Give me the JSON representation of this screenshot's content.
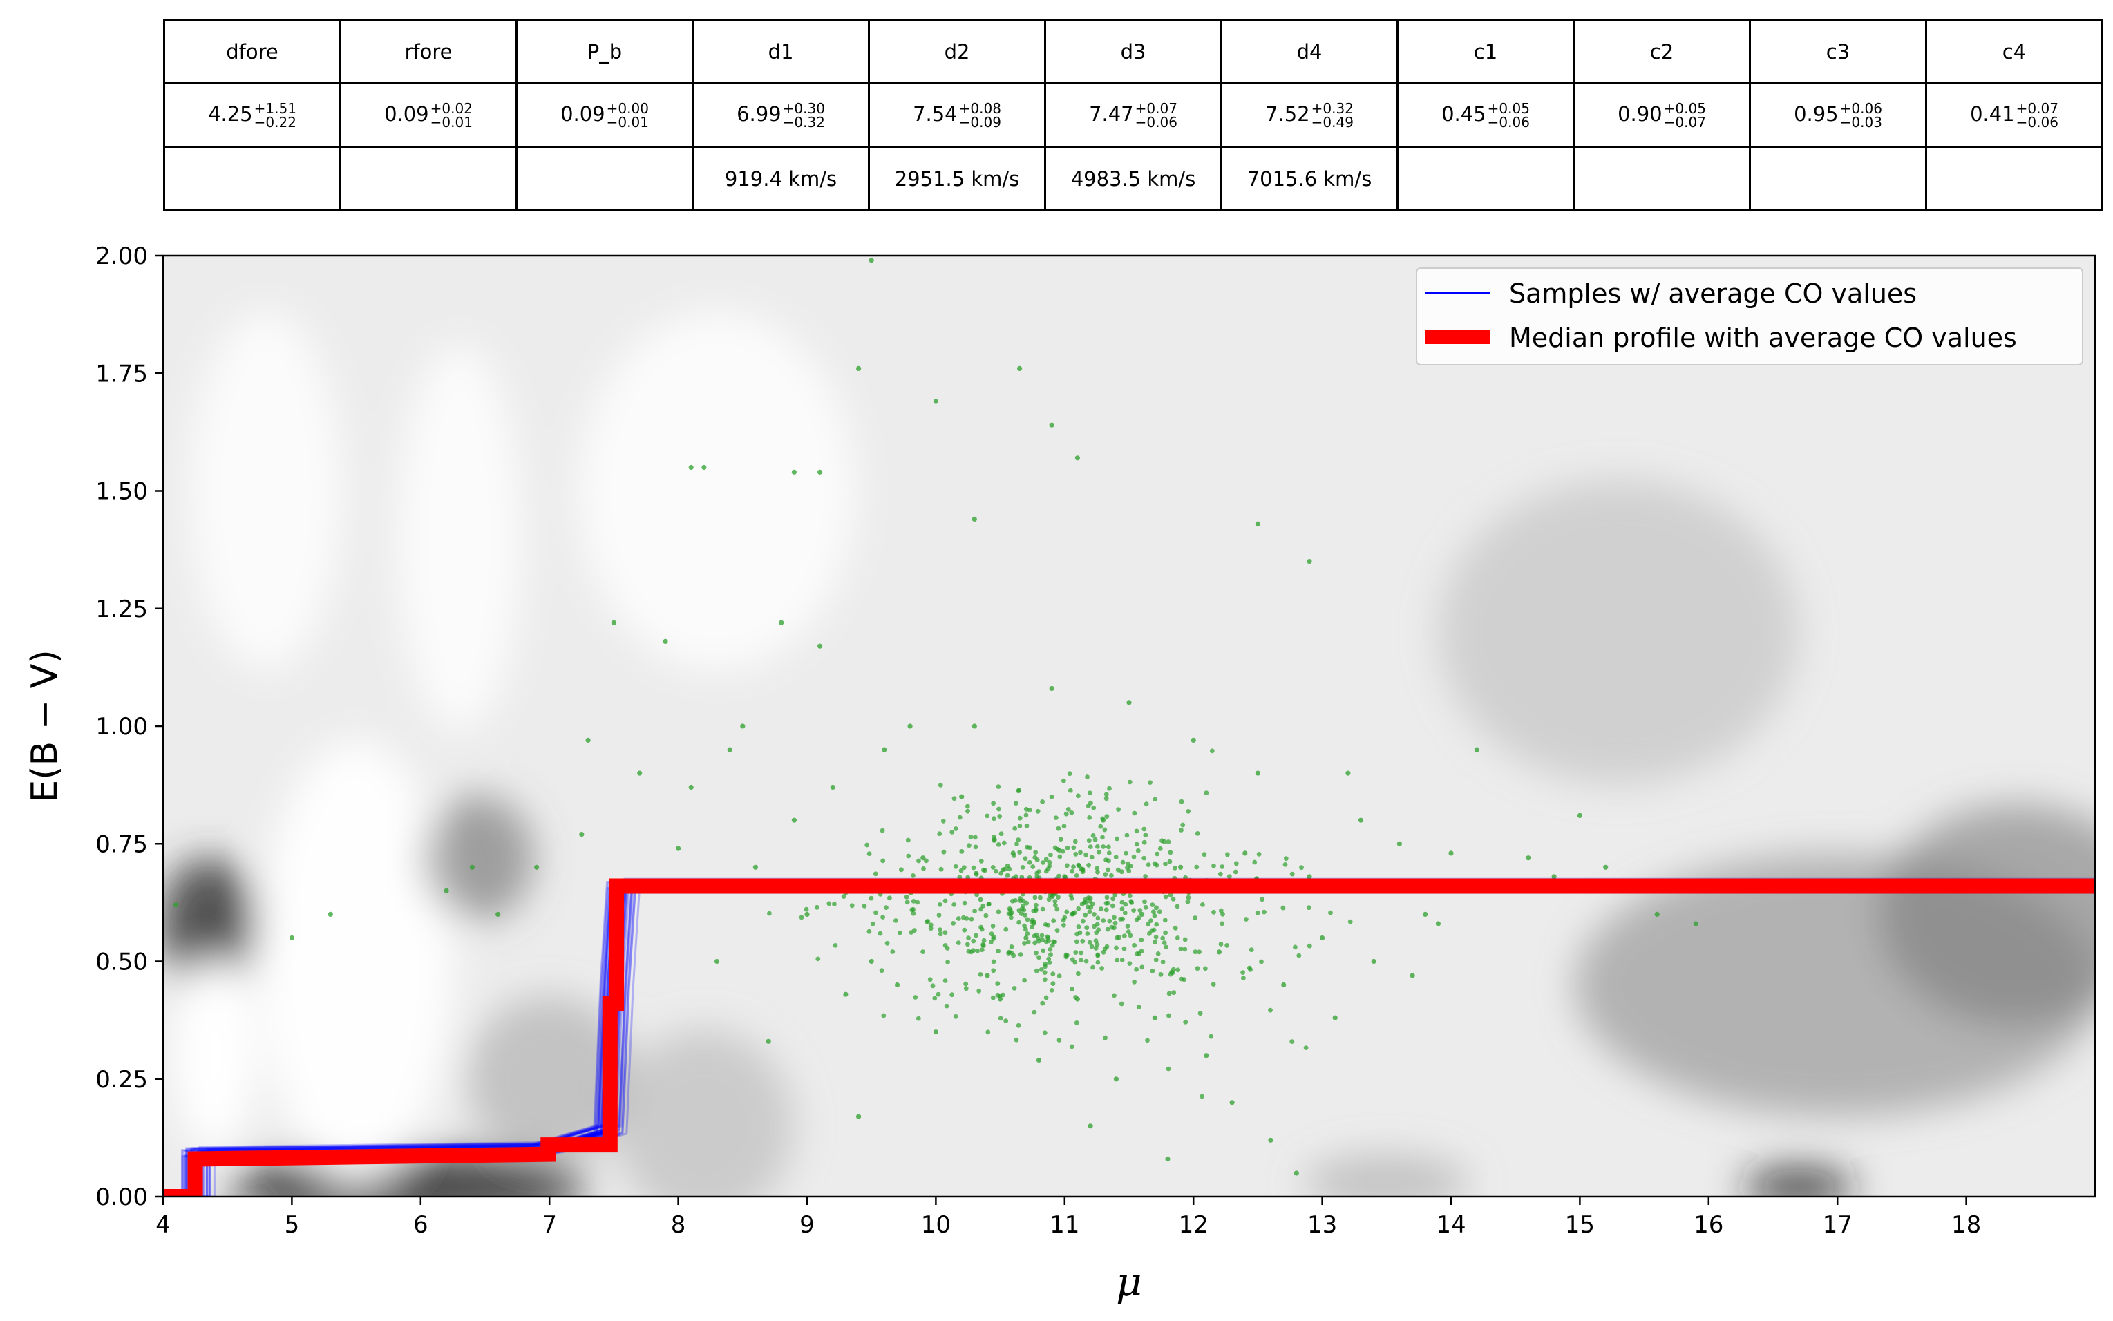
{
  "param_table": {
    "headers": [
      "dfore",
      "rfore",
      "P_b",
      "d1",
      "d2",
      "d3",
      "d4",
      "c1",
      "c2",
      "c3",
      "c4"
    ],
    "values": [
      {
        "value": "4.25",
        "upper": "+1.51",
        "lower": "−0.22"
      },
      {
        "value": "0.09",
        "upper": "+0.02",
        "lower": "−0.01"
      },
      {
        "value": "0.09",
        "upper": "+0.00",
        "lower": "−0.01"
      },
      {
        "value": "6.99",
        "upper": "+0.30",
        "lower": "−0.32"
      },
      {
        "value": "7.54",
        "upper": "+0.08",
        "lower": "−0.09"
      },
      {
        "value": "7.47",
        "upper": "+0.07",
        "lower": "−0.06"
      },
      {
        "value": "7.52",
        "upper": "+0.32",
        "lower": "−0.49"
      },
      {
        "value": "0.45",
        "upper": "+0.05",
        "lower": "−0.06"
      },
      {
        "value": "0.90",
        "upper": "+0.05",
        "lower": "−0.07"
      },
      {
        "value": "0.95",
        "upper": "+0.06",
        "lower": "−0.03"
      },
      {
        "value": "0.41",
        "upper": "+0.07",
        "lower": "−0.06"
      }
    ],
    "velocities": [
      "",
      "",
      "",
      "919.4 km/s",
      "2951.5 km/s",
      "4983.5 km/s",
      "7015.6 km/s",
      "",
      "",
      "",
      ""
    ]
  },
  "chart_data": {
    "type": "line",
    "title": "",
    "xlabel": "μ",
    "ylabel": "E(B − V)",
    "xlim": [
      4,
      19
    ],
    "ylim": [
      0,
      2
    ],
    "xticks": [
      "4",
      "5",
      "6",
      "7",
      "8",
      "9",
      "10",
      "11",
      "12",
      "13",
      "14",
      "15",
      "16",
      "17",
      "18"
    ],
    "yticks": [
      "0.00",
      "0.25",
      "0.50",
      "0.75",
      "1.00",
      "1.25",
      "1.50",
      "1.75",
      "2.00"
    ],
    "grid": false,
    "legend_position": "top-right",
    "background": "grayscale stellar density map",
    "series": [
      {
        "name": "Samples  w/ average CO values",
        "color": "#0000ff",
        "style": "many thin semi-transparent step profiles",
        "x": [
          4.0,
          4.25,
          4.25,
          6.95,
          7.45,
          7.5,
          7.55,
          7.6,
          19.0
        ],
        "y": [
          0.0,
          0.0,
          0.09,
          0.1,
          0.14,
          0.45,
          0.66,
          0.66,
          0.66
        ]
      },
      {
        "name": "Median profile with average CO values",
        "color": "#ff0000",
        "style": "thick step line",
        "x": [
          4.0,
          4.25,
          4.25,
          6.99,
          6.99,
          7.47,
          7.47,
          7.52,
          7.52,
          19.0
        ],
        "y": [
          0.0,
          0.0,
          0.08,
          0.09,
          0.11,
          0.11,
          0.41,
          0.41,
          0.66,
          0.66
        ]
      },
      {
        "type": "scatter",
        "color": "#2ca02c",
        "x": [
          4.1,
          5.0,
          5.3,
          6.2,
          6.9,
          6.4,
          6.6,
          7.25,
          7.3,
          7.5,
          7.6,
          7.7,
          7.9,
          8.0,
          8.1,
          8.2,
          8.3,
          8.4,
          8.5,
          8.6,
          8.7,
          8.8,
          8.9,
          9.0,
          9.1,
          9.2,
          9.3,
          9.4,
          9.5,
          9.6,
          9.7,
          9.8,
          9.9,
          10.0,
          10.1,
          10.2,
          10.3,
          10.4,
          10.5,
          10.6,
          10.7,
          10.8,
          10.9,
          11.0,
          11.1,
          11.2,
          11.3,
          11.4,
          11.5,
          11.6,
          11.7,
          11.8,
          11.9,
          12.0,
          12.1,
          12.2,
          12.3,
          12.4,
          12.5,
          12.6,
          12.7,
          12.8,
          12.9,
          13.0,
          13.1,
          13.2,
          13.3,
          13.4,
          13.5,
          13.6,
          13.7,
          13.8,
          13.9,
          14.0,
          14.2,
          14.4,
          14.6,
          14.8,
          15.0,
          15.2,
          15.4,
          15.6,
          15.9,
          9.5,
          9.4,
          10.0,
          10.65,
          10.9,
          11.1,
          8.1,
          8.9,
          9.1,
          10.3,
          12.5,
          12.9
        ],
        "y": [
          0.62,
          0.55,
          0.6,
          0.65,
          0.7,
          0.7,
          0.6,
          0.77,
          0.97,
          1.22,
          0.66,
          0.9,
          1.18,
          0.74,
          0.87,
          1.55,
          0.5,
          0.95,
          1.0,
          0.7,
          0.33,
          1.22,
          0.8,
          0.6,
          1.17,
          0.87,
          0.43,
          0.17,
          0.5,
          0.95,
          0.45,
          1.0,
          0.72,
          0.35,
          0.66,
          0.85,
          1.0,
          0.47,
          0.42,
          0.73,
          0.55,
          0.29,
          1.08,
          0.68,
          0.42,
          0.15,
          0.8,
          0.25,
          1.05,
          0.6,
          0.38,
          0.08,
          0.7,
          0.97,
          0.3,
          0.52,
          0.2,
          0.73,
          0.9,
          0.12,
          0.45,
          0.05,
          0.68,
          0.55,
          0.38,
          0.9,
          0.8,
          0.5,
          0.65,
          0.75,
          0.47,
          0.6,
          0.58,
          0.73,
          0.95,
          0.65,
          0.72,
          0.68,
          0.81,
          0.7,
          0.66,
          0.6,
          0.58,
          1.99,
          1.76,
          1.69,
          1.76,
          1.64,
          1.57,
          1.55,
          1.54,
          1.54,
          1.44,
          1.43,
          1.35
        ]
      }
    ]
  }
}
